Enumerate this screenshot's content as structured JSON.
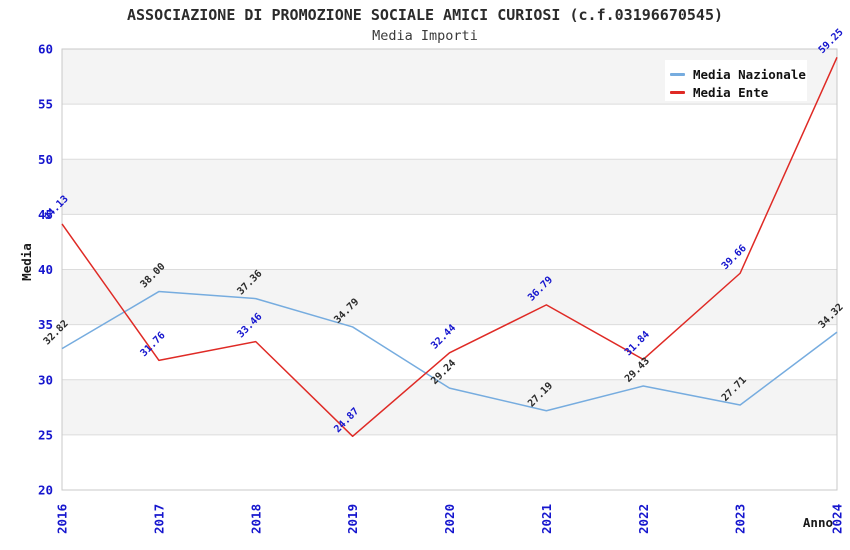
{
  "header": {
    "title": "ASSOCIAZIONE DI PROMOZIONE SOCIALE AMICI CURIOSI (c.f.03196670545)",
    "subtitle": "Media Importi"
  },
  "chart_data": {
    "type": "line",
    "title": "ASSOCIAZIONE DI PROMOZIONE SOCIALE AMICI CURIOSI (c.f.03196670545)",
    "subtitle": "Media Importi",
    "xlabel": "Anno",
    "ylabel": "Media",
    "categories": [
      "2016",
      "2017",
      "2018",
      "2019",
      "2020",
      "2021",
      "2022",
      "2023",
      "2024"
    ],
    "series": [
      {
        "name": "Media Nazionale",
        "color": "#76ACDF",
        "label_color": "#2b2b2b",
        "values": [
          32.82,
          38.0,
          37.36,
          34.79,
          29.24,
          27.19,
          29.43,
          27.71,
          34.32
        ]
      },
      {
        "name": "Media Ente",
        "color": "#DF2A25",
        "label_color": "#1616CE",
        "values": [
          44.13,
          31.76,
          33.46,
          24.87,
          32.44,
          36.79,
          31.84,
          39.66,
          59.25
        ]
      }
    ],
    "ylim": [
      20,
      60
    ],
    "ytick_step": 5,
    "yticks": [
      20,
      25,
      30,
      35,
      40,
      45,
      50,
      55,
      60
    ],
    "grid": "horizontal",
    "banded_background": true,
    "legend_position": "top-right",
    "value_label_decimals": 2
  },
  "style": {
    "tick_color": "#1616CE",
    "band_color": "#f4f4f4",
    "grid_color": "#dcdcdc",
    "border_color": "#c9c9c9",
    "title_color": "#2b2b2b",
    "background": "#ffffff"
  }
}
